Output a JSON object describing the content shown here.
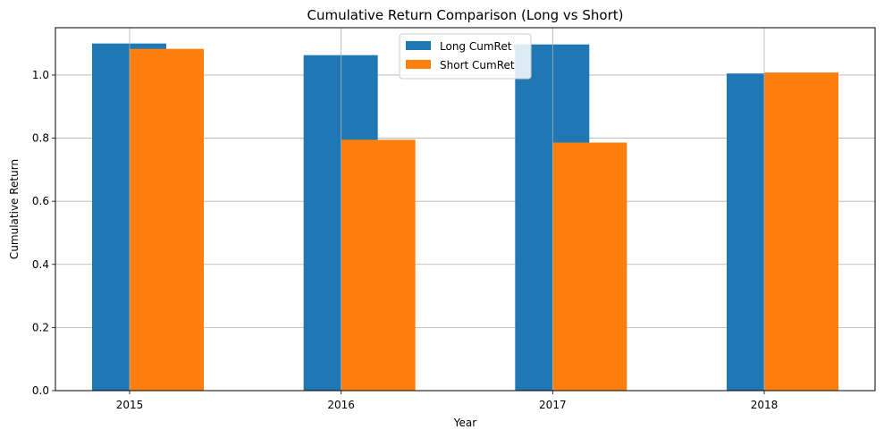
{
  "chart_data": {
    "type": "bar",
    "title": "Cumulative Return Comparison (Long vs Short)",
    "xlabel": "Year",
    "ylabel": "Cumulative Return",
    "categories": [
      "2015",
      "2016",
      "2017",
      "2018"
    ],
    "series": [
      {
        "name": "Long CumRet",
        "values": [
          1.1,
          1.063,
          1.097,
          1.005
        ],
        "color": "#1f77b4"
      },
      {
        "name": "Short CumRet",
        "values": [
          1.083,
          0.795,
          0.786,
          1.008
        ],
        "color": "#ff7f0e"
      }
    ],
    "ylim": [
      0,
      1.15
    ],
    "yticks": [
      0.0,
      0.2,
      0.4,
      0.6,
      0.8,
      1.0
    ],
    "ytick_labels": [
      "0.0",
      "0.2",
      "0.4",
      "0.6",
      "0.8",
      "1.0"
    ],
    "grid": true,
    "legend_position": "top-center"
  }
}
